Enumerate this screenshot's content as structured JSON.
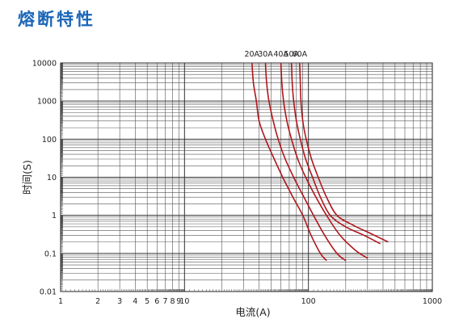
{
  "page": {
    "title": "熔断特性",
    "title_color": "#1b66b8"
  },
  "chart_data": {
    "type": "line",
    "title": "熔断特性",
    "xlabel": "电流(A)",
    "ylabel": "时间(S)",
    "x_scale": "log",
    "y_scale": "log",
    "xlim": [
      1,
      1000
    ],
    "ylim": [
      0.01,
      10000
    ],
    "grid": true,
    "x_ticks": [
      {
        "value": 1,
        "label": "1"
      },
      {
        "value": 2,
        "label": "2"
      },
      {
        "value": 3,
        "label": "3"
      },
      {
        "value": 4,
        "label": "4"
      },
      {
        "value": 5,
        "label": "5"
      },
      {
        "value": 6,
        "label": "6"
      },
      {
        "value": 7,
        "label": "7"
      },
      {
        "value": 8,
        "label": "8"
      },
      {
        "value": 9,
        "label": "9"
      },
      {
        "value": 10,
        "label": "10"
      },
      {
        "value": 100,
        "label": "100"
      },
      {
        "value": 1000,
        "label": "1000"
      }
    ],
    "y_ticks": [
      {
        "value": 0.01,
        "label": "0.01"
      },
      {
        "value": 0.1,
        "label": "0.1"
      },
      {
        "value": 1,
        "label": "1"
      },
      {
        "value": 10,
        "label": "10"
      },
      {
        "value": 100,
        "label": "100"
      },
      {
        "value": 1000,
        "label": "1000"
      },
      {
        "value": 10000,
        "label": "10000"
      }
    ],
    "line_color": "#b0161c",
    "series": [
      {
        "name": "20A",
        "points": [
          [
            35,
            10000
          ],
          [
            36,
            3000
          ],
          [
            38,
            1000
          ],
          [
            40,
            300
          ],
          [
            45,
            100
          ],
          [
            53,
            30
          ],
          [
            62,
            10
          ],
          [
            75,
            3
          ],
          [
            90,
            1
          ],
          [
            105,
            0.3
          ],
          [
            125,
            0.1
          ],
          [
            140,
            0.065
          ]
        ]
      },
      {
        "name": "30A",
        "points": [
          [
            45,
            10000
          ],
          [
            46,
            3000
          ],
          [
            48,
            1000
          ],
          [
            52,
            300
          ],
          [
            57,
            100
          ],
          [
            65,
            30
          ],
          [
            76,
            10
          ],
          [
            92,
            3
          ],
          [
            110,
            1
          ],
          [
            135,
            0.3
          ],
          [
            170,
            0.1
          ],
          [
            200,
            0.065
          ]
        ]
      },
      {
        "name": "40A",
        "points": [
          [
            60,
            10000
          ],
          [
            61,
            3000
          ],
          [
            63,
            1000
          ],
          [
            67,
            300
          ],
          [
            73,
            100
          ],
          [
            82,
            30
          ],
          [
            95,
            10
          ],
          [
            115,
            3
          ],
          [
            140,
            1
          ],
          [
            180,
            0.3
          ],
          [
            240,
            0.12
          ],
          [
            300,
            0.075
          ]
        ]
      },
      {
        "name": "50A",
        "points": [
          [
            73,
            10000
          ],
          [
            74,
            3000
          ],
          [
            76,
            1000
          ],
          [
            80,
            300
          ],
          [
            86,
            100
          ],
          [
            95,
            30
          ],
          [
            108,
            10
          ],
          [
            125,
            3
          ],
          [
            150,
            1
          ],
          [
            200,
            0.5
          ],
          [
            280,
            0.3
          ],
          [
            380,
            0.18
          ]
        ]
      },
      {
        "name": "60A",
        "points": [
          [
            85,
            10000
          ],
          [
            86,
            3000
          ],
          [
            87,
            1000
          ],
          [
            90,
            300
          ],
          [
            96,
            100
          ],
          [
            106,
            30
          ],
          [
            120,
            10
          ],
          [
            140,
            3
          ],
          [
            170,
            1
          ],
          [
            230,
            0.55
          ],
          [
            320,
            0.33
          ],
          [
            440,
            0.2
          ]
        ]
      }
    ]
  }
}
